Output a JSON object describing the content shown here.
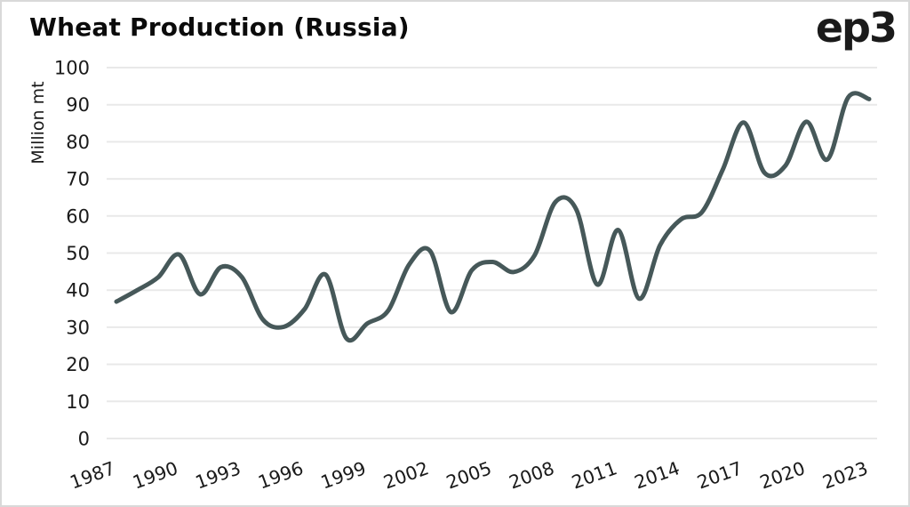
{
  "header": {
    "title": "Wheat Production (Russia)",
    "logo": "ep3"
  },
  "chart_data": {
    "type": "line",
    "title": "Wheat Production (Russia)",
    "xlabel": "",
    "ylabel": "Million mt",
    "x": [
      1987,
      1988,
      1989,
      1990,
      1991,
      1992,
      1993,
      1994,
      1995,
      1996,
      1997,
      1998,
      1999,
      2000,
      2001,
      2002,
      2003,
      2004,
      2005,
      2006,
      2007,
      2008,
      2009,
      2010,
      2011,
      2012,
      2013,
      2014,
      2015,
      2016,
      2017,
      2018,
      2019,
      2020,
      2021,
      2022,
      2023
    ],
    "series": [
      {
        "name": "Wheat production (million mt)",
        "values": [
          36.9,
          40.0,
          43.5,
          49.6,
          38.9,
          46.2,
          43.5,
          32.1,
          30.1,
          34.9,
          44.2,
          27.0,
          31.0,
          34.5,
          46.9,
          50.6,
          34.1,
          45.4,
          47.6,
          44.9,
          49.4,
          63.8,
          61.7,
          41.5,
          56.2,
          37.7,
          52.1,
          59.1,
          61.0,
          72.5,
          85.2,
          71.6,
          73.6,
          85.4,
          75.2,
          92.0,
          91.5
        ]
      }
    ],
    "ylim": [
      0,
      100
    ],
    "yticks": [
      0,
      10,
      20,
      30,
      40,
      50,
      60,
      70,
      80,
      90,
      100
    ],
    "xticks": [
      1987,
      1990,
      1993,
      1996,
      1999,
      2002,
      2005,
      2008,
      2011,
      2014,
      2017,
      2020,
      2023
    ],
    "grid": "horizontal",
    "legend_position": "none",
    "smoothing": "spline",
    "colors": {
      "line": "#465859",
      "grid": "#e9e9e9",
      "text": "#1a1a1a",
      "title": "#0b0b0b",
      "background": "#ffffff",
      "frame_border": "#d9d9d9"
    }
  }
}
